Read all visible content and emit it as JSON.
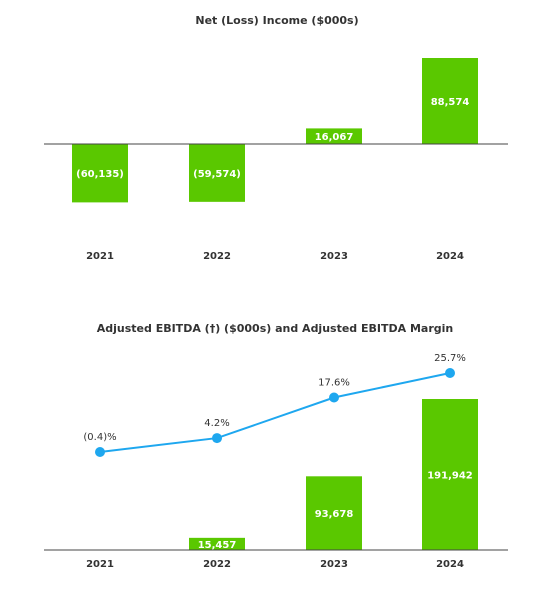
{
  "chart_data": [
    {
      "type": "bar",
      "title": "Net (Loss) Income ($000s)",
      "categories": [
        "2021",
        "2022",
        "2023",
        "2024"
      ],
      "values": [
        -60135,
        -59574,
        16067,
        88574
      ],
      "value_labels": [
        "(60,135)",
        "(59,574)",
        "16,067",
        "88,574"
      ],
      "color": "#5ac800",
      "grid": false
    },
    {
      "type": "bar",
      "title": "Adjusted EBITDA (†) ($000s) and Adjusted EBITDA Margin",
      "categories": [
        "2021",
        "2022",
        "2023",
        "2024"
      ],
      "series": [
        {
          "type": "bar",
          "values": [
            -1000,
            15457,
            93678,
            191942
          ],
          "labels": [
            "",
            "15,457",
            "93,678",
            "191,942"
          ],
          "color": "#5ac800"
        },
        {
          "type": "line",
          "values": [
            -0.4,
            4.2,
            17.6,
            25.7
          ],
          "labels": [
            "(0.4)%",
            "4.2%",
            "17.6%",
            "25.7%"
          ],
          "color": "#1ea7ef"
        }
      ],
      "grid": false
    }
  ]
}
